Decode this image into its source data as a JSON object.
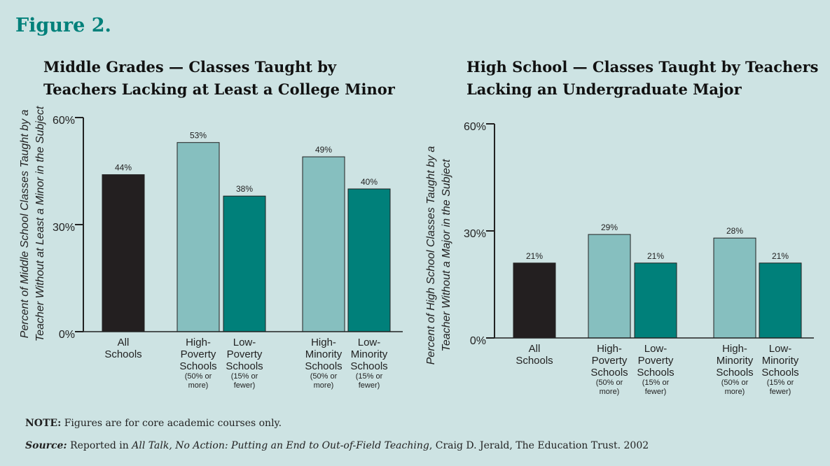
{
  "figure_title": "Figure 2.",
  "note_label": "NOTE:",
  "note": "Figures are for core academic courses only.",
  "source_label": "Source:",
  "source_prefix": "Reported in",
  "source_title": "All Talk, No Action: Putting an End to Out-of-Field Teaching",
  "source_rest": ", Craig D. Jerald, The Education Trust. 2002",
  "chart_data": [
    {
      "type": "bar",
      "title": [
        "Middle Grades — Classes Taught by",
        "Teachers Lacking at Least a College Minor"
      ],
      "ylabel": [
        "Percent of Middle School Classes Taught by a",
        "Teacher Without at Least a Minor in the Subject"
      ],
      "categories": [
        [
          "All",
          "Schools"
        ],
        [
          "High-",
          "Poverty",
          "Schools"
        ],
        [
          "Low-",
          "Poverty",
          "Schools"
        ],
        [
          "High-",
          "Minority",
          "Schools"
        ],
        [
          "Low-",
          "Minority",
          "Schools"
        ]
      ],
      "category_notes": [
        null,
        [
          "(50% or",
          "more)"
        ],
        [
          "(15% or",
          "fewer)"
        ],
        [
          "(50% or",
          "more)"
        ],
        [
          "(15% or",
          "fewer)"
        ]
      ],
      "values": [
        44,
        53,
        38,
        49,
        40
      ],
      "value_labels": [
        "44%",
        "53%",
        "38%",
        "49%",
        "40%"
      ],
      "colors": [
        "#231f20",
        "#86bfbf",
        "#00807a",
        "#86bfbf",
        "#00807a"
      ],
      "ylim": [
        0,
        60
      ],
      "yticks": [
        {
          "value": 0,
          "label": "0%"
        },
        {
          "value": 30,
          "label": "30%"
        },
        {
          "value": 60,
          "label": "60%"
        }
      ]
    },
    {
      "type": "bar",
      "title": [
        "High School — Classes Taught by Teachers",
        "Lacking an Undergraduate Major"
      ],
      "ylabel": [
        "Percent of High School Classes Taught by a",
        "Teacher Without a Major in the Subject"
      ],
      "categories": [
        [
          "All",
          "Schools"
        ],
        [
          "High-",
          "Poverty",
          "Schools"
        ],
        [
          "Low-",
          "Poverty",
          "Schools"
        ],
        [
          "High-",
          "Minority",
          "Schools"
        ],
        [
          "Low-",
          "Minority",
          "Schools"
        ]
      ],
      "category_notes": [
        null,
        [
          "(50% or",
          "more)"
        ],
        [
          "(15% or",
          "fewer)"
        ],
        [
          "(50% or",
          "more)"
        ],
        [
          "(15% or",
          "fewer)"
        ]
      ],
      "values": [
        21,
        29,
        21,
        28,
        21
      ],
      "value_labels": [
        "21%",
        "29%",
        "21%",
        "28%",
        "21%"
      ],
      "colors": [
        "#231f20",
        "#86bfbf",
        "#00807a",
        "#86bfbf",
        "#00807a"
      ],
      "ylim": [
        0,
        60
      ],
      "yticks": [
        {
          "value": 0,
          "label": "0%"
        },
        {
          "value": 30,
          "label": "30%"
        },
        {
          "value": 60,
          "label": "60%"
        }
      ]
    }
  ]
}
